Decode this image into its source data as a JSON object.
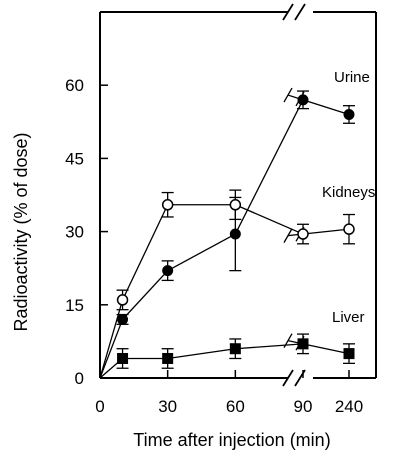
{
  "chart_data": {
    "type": "scatter",
    "title": "",
    "xlabel": "Time after injection (min)",
    "ylabel": "Radioactivity (% of dose)",
    "x_ticks": [
      "0",
      "30",
      "60",
      "90",
      "240"
    ],
    "y_ticks": [
      "0",
      "15",
      "30",
      "45",
      "60"
    ],
    "ylim": [
      0,
      75
    ],
    "x_axis_break": "between 90 and 240",
    "grid": false,
    "series": [
      {
        "name": "Urine",
        "marker": "filled-circle",
        "x": [
          0,
          10,
          30,
          60,
          90,
          240
        ],
        "y": [
          0,
          12,
          22,
          29.5,
          57,
          54
        ],
        "err": [
          0,
          1,
          2,
          7.5,
          1.8,
          1.8
        ]
      },
      {
        "name": "Kidneys",
        "marker": "open-circle",
        "x": [
          0,
          10,
          30,
          60,
          90,
          240
        ],
        "y": [
          0,
          16,
          35.5,
          35.5,
          29.5,
          30.5
        ],
        "err": [
          0,
          2,
          2.5,
          3,
          2,
          3
        ]
      },
      {
        "name": "Liver",
        "marker": "filled-square",
        "x": [
          0,
          10,
          30,
          60,
          90,
          240
        ],
        "y": [
          0,
          4,
          4,
          6,
          7,
          5
        ],
        "err": [
          0,
          2,
          2,
          2,
          2,
          2
        ]
      }
    ]
  }
}
